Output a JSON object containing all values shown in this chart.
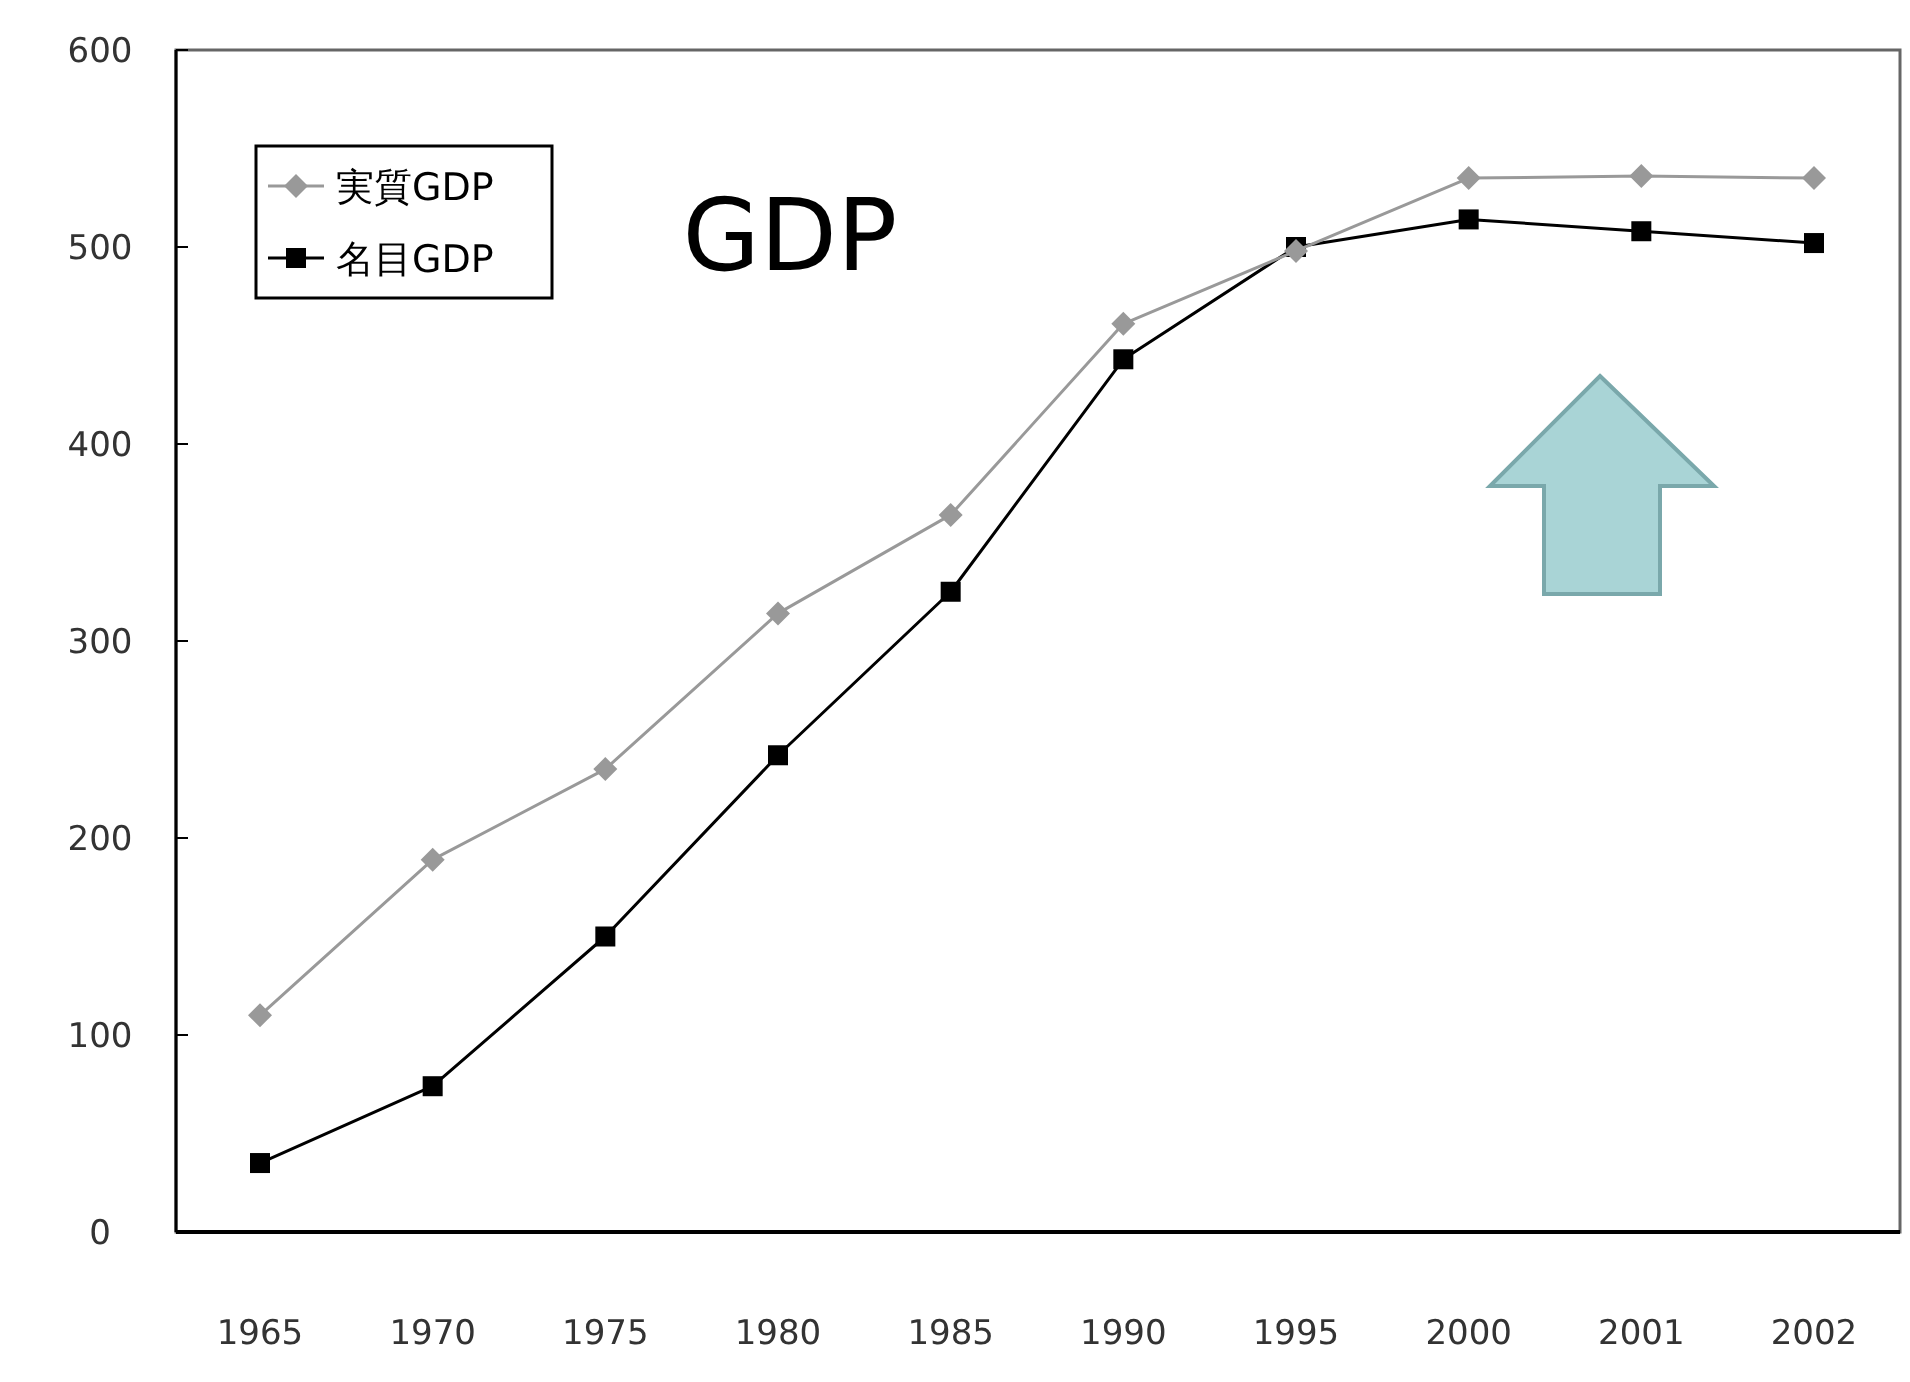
{
  "chart_data": {
    "type": "line",
    "title": "GDP",
    "categories": [
      "1965",
      "1970",
      "1975",
      "1980",
      "1985",
      "1990",
      "1995",
      "2000",
      "2001",
      "2002"
    ],
    "series": [
      {
        "name": "実質GDP",
        "color": "#999999",
        "marker": "diamond",
        "values": [
          110,
          189,
          235,
          314,
          364,
          461,
          498,
          535,
          536,
          535
        ]
      },
      {
        "name": "名目GDP",
        "color": "#000000",
        "marker": "square",
        "values": [
          35,
          74,
          150,
          242,
          325,
          443,
          500,
          514,
          508,
          502
        ]
      }
    ],
    "ylim": [
      0,
      600
    ],
    "yticks": [
      0,
      100,
      200,
      300,
      400,
      500,
      600
    ],
    "legend": "top left",
    "line_style": "solid"
  }
}
